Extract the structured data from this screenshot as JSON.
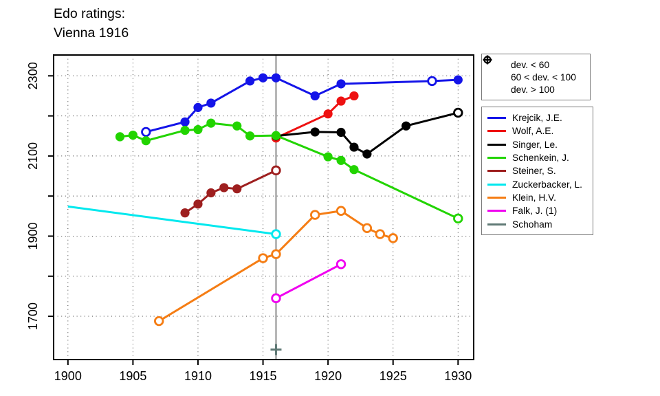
{
  "title": {
    "line1": "Edo ratings:",
    "line2": "Vienna 1916"
  },
  "deviation_legend": {
    "items": [
      {
        "marker": "f",
        "label": "dev. < 60"
      },
      {
        "marker": "o",
        "label": "60 < dev. < 100"
      },
      {
        "marker": "+",
        "label": "dev. > 100"
      }
    ]
  },
  "colors": {
    "axis": "#000000",
    "grid": "#3c3c3c",
    "event_line": "#8c8c8c",
    "legend_border": "#7a7a7a"
  },
  "chart_data": {
    "type": "line",
    "title": "Edo ratings: Vienna 1916",
    "xlabel": "",
    "ylabel": "",
    "grid": true,
    "legend_position": "right",
    "xlim": [
      1898.9,
      1931.2
    ],
    "ylim": [
      1592,
      2352
    ],
    "x_ticks": [
      1900,
      1905,
      1910,
      1915,
      1920,
      1925,
      1930
    ],
    "y_ticks": [
      1700,
      1800,
      1900,
      2000,
      2100,
      2200,
      2300
    ],
    "y_tick_labels": [
      "1700",
      "",
      "1900",
      "",
      "2100",
      "",
      "2300"
    ],
    "event_line_year": 1916,
    "marker_meaning": {
      "f": "dev. < 60",
      "o": "60 < dev. < 100",
      "+": "dev. > 100",
      "n": "line end, no marker"
    },
    "series": [
      {
        "name": "Krejcik, J.E.",
        "color": "#1414e8",
        "points": [
          [
            1906,
            2160,
            "o"
          ],
          [
            1909,
            2185,
            "f"
          ],
          [
            1910,
            2221,
            "f"
          ],
          [
            1911,
            2232,
            "f"
          ],
          [
            1914,
            2287,
            "f"
          ],
          [
            1915,
            2295,
            "f"
          ],
          [
            1916,
            2295,
            "f"
          ],
          [
            1919,
            2250,
            "f"
          ],
          [
            1921,
            2280,
            "f"
          ],
          [
            1928,
            2287,
            "o"
          ],
          [
            1930,
            2290,
            "f"
          ]
        ]
      },
      {
        "name": "Wolf, A.E.",
        "color": "#ee1111",
        "points": [
          [
            1916,
            2145,
            "f"
          ],
          [
            1920,
            2205,
            "f"
          ],
          [
            1921,
            2237,
            "f"
          ],
          [
            1922,
            2250,
            "f"
          ]
        ]
      },
      {
        "name": "Singer, Le.",
        "color": "#000000",
        "points": [
          [
            1916,
            2150,
            "f"
          ],
          [
            1919,
            2160,
            "f"
          ],
          [
            1921,
            2159,
            "f"
          ],
          [
            1922,
            2122,
            "f"
          ],
          [
            1923,
            2105,
            "f"
          ],
          [
            1926,
            2175,
            "f"
          ],
          [
            1930,
            2208,
            "o"
          ]
        ]
      },
      {
        "name": "Schenkein, J.",
        "color": "#22d400",
        "points": [
          [
            1904,
            2148,
            "f"
          ],
          [
            1905,
            2152,
            "f"
          ],
          [
            1906,
            2138,
            "f"
          ],
          [
            1909,
            2164,
            "f"
          ],
          [
            1910,
            2166,
            "f"
          ],
          [
            1911,
            2182,
            "f"
          ],
          [
            1913,
            2175,
            "f"
          ],
          [
            1914,
            2150,
            "f"
          ],
          [
            1916,
            2151,
            "f"
          ],
          [
            1920,
            2098,
            "f"
          ],
          [
            1921,
            2089,
            "f"
          ],
          [
            1922,
            2066,
            "f"
          ],
          [
            1930,
            1944,
            "o"
          ]
        ]
      },
      {
        "name": "Steiner, S.",
        "color": "#9e1f1f",
        "points": [
          [
            1909,
            1958,
            "f"
          ],
          [
            1910,
            1980,
            "f"
          ],
          [
            1911,
            2008,
            "f"
          ],
          [
            1912,
            2021,
            "f"
          ],
          [
            1913,
            2018,
            "f"
          ],
          [
            1916,
            2064,
            "o"
          ]
        ]
      },
      {
        "name": "Zuckerbacker, L.",
        "color": "#00e8ee",
        "points": [
          [
            1900,
            1974,
            "n"
          ],
          [
            1916,
            1905,
            "o"
          ]
        ]
      },
      {
        "name": "Klein, H.V.",
        "color": "#f57d14",
        "points": [
          [
            1907,
            1688,
            "o"
          ],
          [
            1915,
            1845,
            "o"
          ],
          [
            1916,
            1855,
            "o"
          ],
          [
            1919,
            1953,
            "o"
          ],
          [
            1921,
            1963,
            "o"
          ],
          [
            1923,
            1920,
            "o"
          ],
          [
            1924,
            1905,
            "o"
          ],
          [
            1925,
            1895,
            "o"
          ]
        ]
      },
      {
        "name": "Falk, J. (1)",
        "color": "#f000f0",
        "points": [
          [
            1916,
            1745,
            "o"
          ],
          [
            1921,
            1830,
            "o"
          ]
        ]
      },
      {
        "name": "Schoham",
        "color": "#5f7975",
        "points": [
          [
            1916,
            1617,
            "+"
          ]
        ]
      }
    ]
  }
}
